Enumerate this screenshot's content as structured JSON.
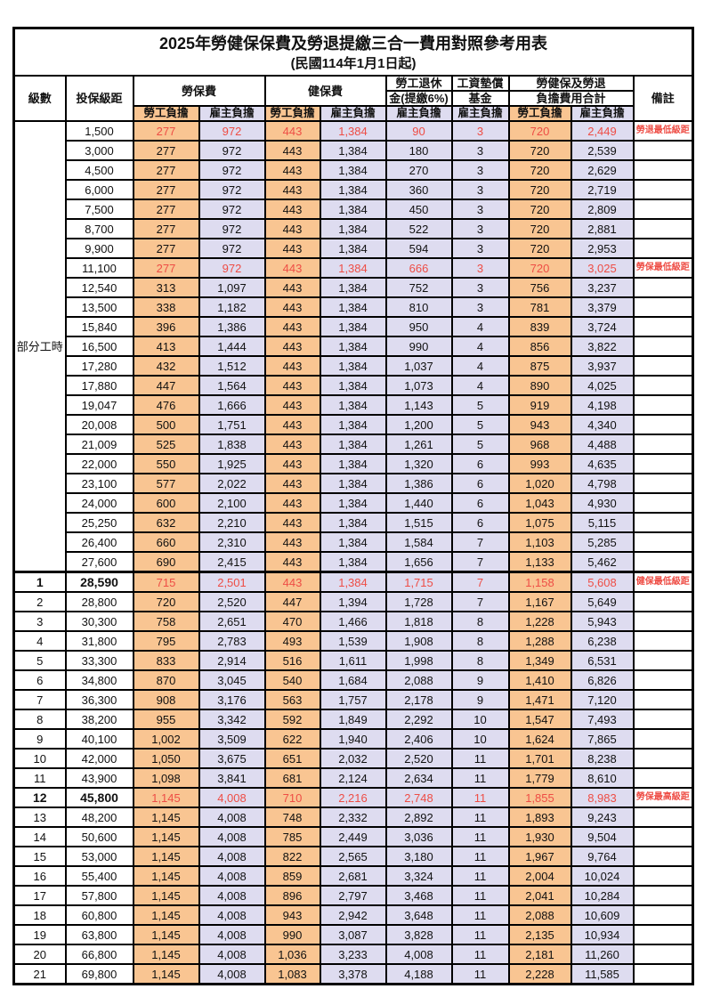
{
  "title": "2025年勞健保保費及勞退提繳三合一費用對照參考用表",
  "subtitle": "(民國114年1月1日起)",
  "header": {
    "level": "級數",
    "bracket": "投保級距",
    "labor_insurance": "勞保費",
    "health_insurance": "健保費",
    "pension_line1": "勞工退休",
    "pension_line2": "金(提繳6%)",
    "wage_fund_line1": "工資墊償",
    "wage_fund_line2": "基金",
    "total_line1": "勞健保及勞退",
    "total_line2": "負擔費用合計",
    "remark": "備註",
    "employee": "勞工負擔",
    "employer": "雇主負擔"
  },
  "part_time_label": "部分工時",
  "colors": {
    "employee_bg": "#F9C592",
    "employer_bg": "#DEDCF0",
    "highlight_red": "#EE4D45",
    "border": "#000000"
  },
  "rows": [
    {
      "level": null,
      "bracket": "1,500",
      "v": [
        "277",
        "972",
        "443",
        "1,384",
        "90",
        "3",
        "720",
        "2,449"
      ],
      "remark": "勞退最低級距",
      "hl": true
    },
    {
      "level": null,
      "bracket": "3,000",
      "v": [
        "277",
        "972",
        "443",
        "1,384",
        "180",
        "3",
        "720",
        "2,539"
      ]
    },
    {
      "level": null,
      "bracket": "4,500",
      "v": [
        "277",
        "972",
        "443",
        "1,384",
        "270",
        "3",
        "720",
        "2,629"
      ]
    },
    {
      "level": null,
      "bracket": "6,000",
      "v": [
        "277",
        "972",
        "443",
        "1,384",
        "360",
        "3",
        "720",
        "2,719"
      ]
    },
    {
      "level": null,
      "bracket": "7,500",
      "v": [
        "277",
        "972",
        "443",
        "1,384",
        "450",
        "3",
        "720",
        "2,809"
      ]
    },
    {
      "level": null,
      "bracket": "8,700",
      "v": [
        "277",
        "972",
        "443",
        "1,384",
        "522",
        "3",
        "720",
        "2,881"
      ]
    },
    {
      "level": null,
      "bracket": "9,900",
      "v": [
        "277",
        "972",
        "443",
        "1,384",
        "594",
        "3",
        "720",
        "2,953"
      ]
    },
    {
      "level": null,
      "bracket": "11,100",
      "v": [
        "277",
        "972",
        "443",
        "1,384",
        "666",
        "3",
        "720",
        "3,025"
      ],
      "remark": "勞保最低級距",
      "hl": true
    },
    {
      "level": null,
      "bracket": "12,540",
      "v": [
        "313",
        "1,097",
        "443",
        "1,384",
        "752",
        "3",
        "756",
        "3,237"
      ]
    },
    {
      "level": null,
      "bracket": "13,500",
      "v": [
        "338",
        "1,182",
        "443",
        "1,384",
        "810",
        "3",
        "781",
        "3,379"
      ]
    },
    {
      "level": null,
      "bracket": "15,840",
      "v": [
        "396",
        "1,386",
        "443",
        "1,384",
        "950",
        "4",
        "839",
        "3,724"
      ]
    },
    {
      "level": null,
      "bracket": "16,500",
      "v": [
        "413",
        "1,444",
        "443",
        "1,384",
        "990",
        "4",
        "856",
        "3,822"
      ]
    },
    {
      "level": null,
      "bracket": "17,280",
      "v": [
        "432",
        "1,512",
        "443",
        "1,384",
        "1,037",
        "4",
        "875",
        "3,937"
      ]
    },
    {
      "level": null,
      "bracket": "17,880",
      "v": [
        "447",
        "1,564",
        "443",
        "1,384",
        "1,073",
        "4",
        "890",
        "4,025"
      ]
    },
    {
      "level": null,
      "bracket": "19,047",
      "v": [
        "476",
        "1,666",
        "443",
        "1,384",
        "1,143",
        "5",
        "919",
        "4,198"
      ]
    },
    {
      "level": null,
      "bracket": "20,008",
      "v": [
        "500",
        "1,751",
        "443",
        "1,384",
        "1,200",
        "5",
        "943",
        "4,340"
      ]
    },
    {
      "level": null,
      "bracket": "21,009",
      "v": [
        "525",
        "1,838",
        "443",
        "1,384",
        "1,261",
        "5",
        "968",
        "4,488"
      ]
    },
    {
      "level": null,
      "bracket": "22,000",
      "v": [
        "550",
        "1,925",
        "443",
        "1,384",
        "1,320",
        "6",
        "993",
        "4,635"
      ]
    },
    {
      "level": null,
      "bracket": "23,100",
      "v": [
        "577",
        "2,022",
        "443",
        "1,384",
        "1,386",
        "6",
        "1,020",
        "4,798"
      ]
    },
    {
      "level": null,
      "bracket": "24,000",
      "v": [
        "600",
        "2,100",
        "443",
        "1,384",
        "1,440",
        "6",
        "1,043",
        "4,930"
      ]
    },
    {
      "level": null,
      "bracket": "25,250",
      "v": [
        "632",
        "2,210",
        "443",
        "1,384",
        "1,515",
        "6",
        "1,075",
        "5,115"
      ]
    },
    {
      "level": null,
      "bracket": "26,400",
      "v": [
        "660",
        "2,310",
        "443",
        "1,384",
        "1,584",
        "7",
        "1,103",
        "5,285"
      ]
    },
    {
      "level": null,
      "bracket": "27,600",
      "v": [
        "690",
        "2,415",
        "443",
        "1,384",
        "1,656",
        "7",
        "1,133",
        "5,462"
      ]
    },
    {
      "level": "1",
      "bracket": "28,590",
      "v": [
        "715",
        "2,501",
        "443",
        "1,384",
        "1,715",
        "7",
        "1,158",
        "5,608"
      ],
      "remark": "健保最低級距",
      "hl": true,
      "bold": true,
      "thick": true
    },
    {
      "level": "2",
      "bracket": "28,800",
      "v": [
        "720",
        "2,520",
        "447",
        "1,394",
        "1,728",
        "7",
        "1,167",
        "5,649"
      ]
    },
    {
      "level": "3",
      "bracket": "30,300",
      "v": [
        "758",
        "2,651",
        "470",
        "1,466",
        "1,818",
        "8",
        "1,228",
        "5,943"
      ]
    },
    {
      "level": "4",
      "bracket": "31,800",
      "v": [
        "795",
        "2,783",
        "493",
        "1,539",
        "1,908",
        "8",
        "1,288",
        "6,238"
      ]
    },
    {
      "level": "5",
      "bracket": "33,300",
      "v": [
        "833",
        "2,914",
        "516",
        "1,611",
        "1,998",
        "8",
        "1,349",
        "6,531"
      ]
    },
    {
      "level": "6",
      "bracket": "34,800",
      "v": [
        "870",
        "3,045",
        "540",
        "1,684",
        "2,088",
        "9",
        "1,410",
        "6,826"
      ]
    },
    {
      "level": "7",
      "bracket": "36,300",
      "v": [
        "908",
        "3,176",
        "563",
        "1,757",
        "2,178",
        "9",
        "1,471",
        "7,120"
      ]
    },
    {
      "level": "8",
      "bracket": "38,200",
      "v": [
        "955",
        "3,342",
        "592",
        "1,849",
        "2,292",
        "10",
        "1,547",
        "7,493"
      ]
    },
    {
      "level": "9",
      "bracket": "40,100",
      "v": [
        "1,002",
        "3,509",
        "622",
        "1,940",
        "2,406",
        "10",
        "1,624",
        "7,865"
      ]
    },
    {
      "level": "10",
      "bracket": "42,000",
      "v": [
        "1,050",
        "3,675",
        "651",
        "2,032",
        "2,520",
        "11",
        "1,701",
        "8,238"
      ]
    },
    {
      "level": "11",
      "bracket": "43,900",
      "v": [
        "1,098",
        "3,841",
        "681",
        "2,124",
        "2,634",
        "11",
        "1,779",
        "8,610"
      ]
    },
    {
      "level": "12",
      "bracket": "45,800",
      "v": [
        "1,145",
        "4,008",
        "710",
        "2,216",
        "2,748",
        "11",
        "1,855",
        "8,983"
      ],
      "remark": "勞保最高級距",
      "hl": true,
      "bold": true
    },
    {
      "level": "13",
      "bracket": "48,200",
      "v": [
        "1,145",
        "4,008",
        "748",
        "2,332",
        "2,892",
        "11",
        "1,893",
        "9,243"
      ]
    },
    {
      "level": "14",
      "bracket": "50,600",
      "v": [
        "1,145",
        "4,008",
        "785",
        "2,449",
        "3,036",
        "11",
        "1,930",
        "9,504"
      ]
    },
    {
      "level": "15",
      "bracket": "53,000",
      "v": [
        "1,145",
        "4,008",
        "822",
        "2,565",
        "3,180",
        "11",
        "1,967",
        "9,764"
      ]
    },
    {
      "level": "16",
      "bracket": "55,400",
      "v": [
        "1,145",
        "4,008",
        "859",
        "2,681",
        "3,324",
        "11",
        "2,004",
        "10,024"
      ]
    },
    {
      "level": "17",
      "bracket": "57,800",
      "v": [
        "1,145",
        "4,008",
        "896",
        "2,797",
        "3,468",
        "11",
        "2,041",
        "10,284"
      ]
    },
    {
      "level": "18",
      "bracket": "60,800",
      "v": [
        "1,145",
        "4,008",
        "943",
        "2,942",
        "3,648",
        "11",
        "2,088",
        "10,609"
      ]
    },
    {
      "level": "19",
      "bracket": "63,800",
      "v": [
        "1,145",
        "4,008",
        "990",
        "3,087",
        "3,828",
        "11",
        "2,135",
        "10,934"
      ]
    },
    {
      "level": "20",
      "bracket": "66,800",
      "v": [
        "1,145",
        "4,008",
        "1,036",
        "3,233",
        "4,008",
        "11",
        "2,181",
        "11,260"
      ]
    },
    {
      "level": "21",
      "bracket": "69,800",
      "v": [
        "1,145",
        "4,008",
        "1,083",
        "3,378",
        "4,188",
        "11",
        "2,228",
        "11,585"
      ]
    }
  ]
}
